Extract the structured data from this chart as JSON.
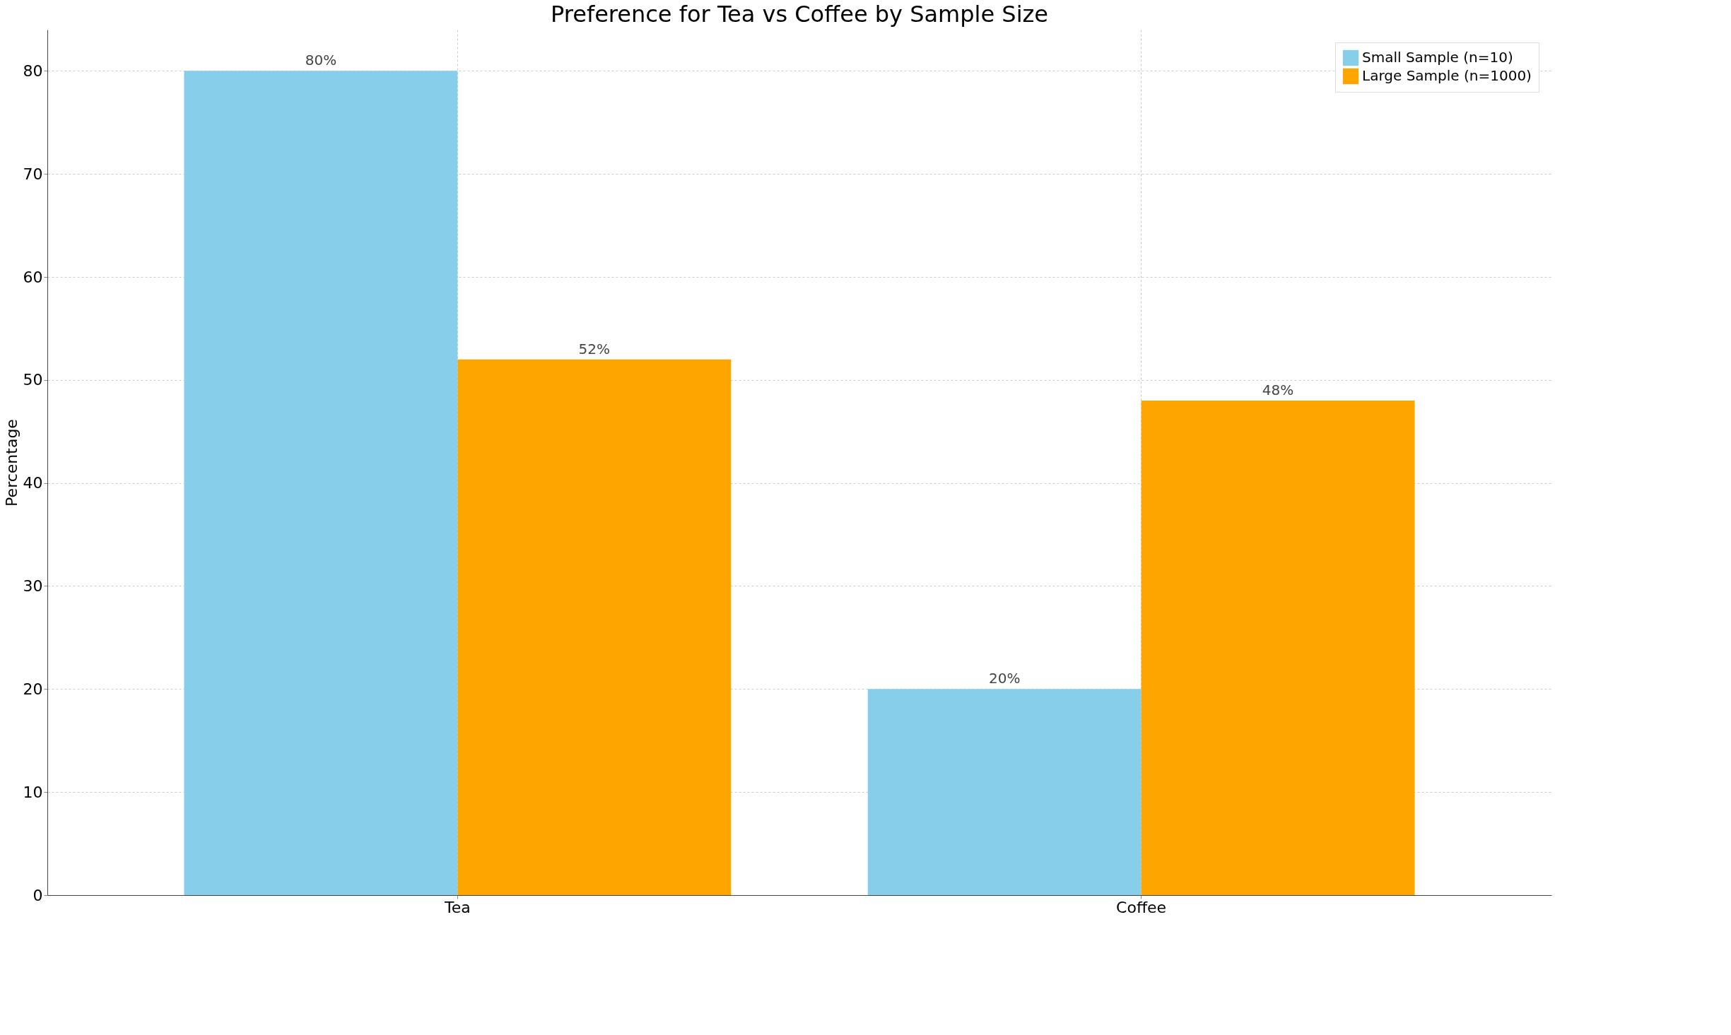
{
  "chart_data": {
    "type": "bar",
    "title": "Preference for Tea vs Coffee by Sample Size",
    "ylabel": "Percentage",
    "categories": [
      "Tea",
      "Coffee"
    ],
    "series": [
      {
        "name": "Small Sample (n=10)",
        "color": "#87ceeb",
        "values": [
          80,
          20
        ],
        "value_labels": [
          "80%",
          "20%"
        ]
      },
      {
        "name": "Large Sample (n=1000)",
        "color": "#ffa500",
        "values": [
          52,
          48
        ],
        "value_labels": [
          "52%",
          "48%"
        ]
      }
    ],
    "ylim": [
      0,
      84
    ],
    "yticks": [
      0,
      10,
      20,
      30,
      40,
      50,
      60,
      70,
      80
    ],
    "grid": true,
    "legend": "top right"
  }
}
